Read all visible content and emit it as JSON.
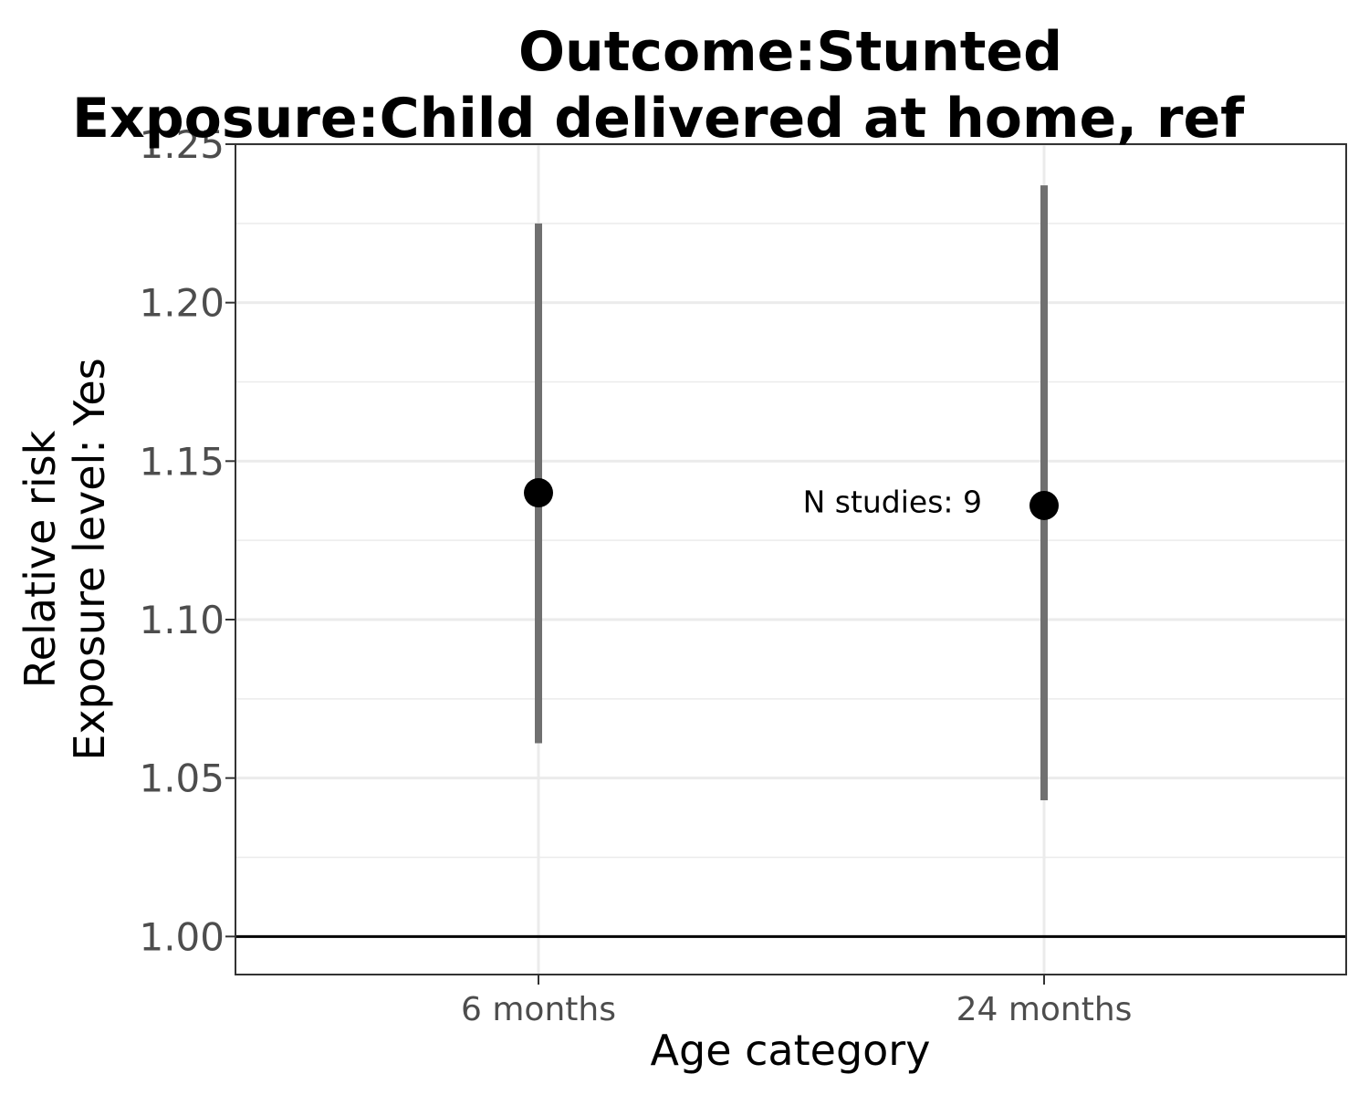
{
  "chart_data": {
    "type": "scatter",
    "title_lines": [
      "Outcome:Stunted",
      "Exposure:Child delivered at home, ref"
    ],
    "xlabel": "Age category",
    "ylabel_lines": [
      "Relative risk",
      "Exposure level: Yes"
    ],
    "categories": [
      "6 months",
      "24 months"
    ],
    "estimates": [
      1.14,
      1.136
    ],
    "ci_lower": [
      1.061,
      1.043
    ],
    "ci_upper": [
      1.225,
      1.237
    ],
    "ylim": [
      0.988,
      1.25
    ],
    "yticks": [
      1.0,
      1.05,
      1.1,
      1.15,
      1.2,
      1.25
    ],
    "ytick_labels": [
      "1.00",
      "1.05",
      "1.10",
      "1.15",
      "1.20",
      "1.25"
    ],
    "reference_line": 1.0,
    "annotation": {
      "text": "N studies: 9",
      "x_category": 0.7,
      "y": 1.137
    },
    "grid": true,
    "colors": {
      "point": "#000000",
      "interval": "#707070",
      "grid": "#ebebeb",
      "panel_border": "#333333",
      "reference": "#000000"
    }
  }
}
